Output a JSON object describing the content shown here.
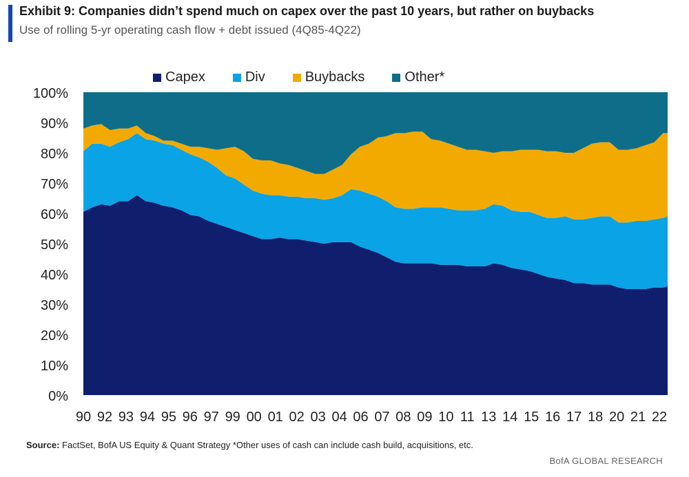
{
  "header": {
    "title": "Exhibit 9: Companies didn’t spend much on capex over the past 10 years, but rather on buybacks",
    "subtitle": "Use of rolling 5-yr operating cash flow + debt issued (4Q85-4Q22)"
  },
  "footer": {
    "source_label": "Source:",
    "source_text": " FactSet, BofA US Equity & Quant Strategy *Other uses of cash can include cash build, acquisitions,  etc.",
    "brand": "BofA GLOBAL RESEARCH"
  },
  "colors": {
    "capex": "#0f1f6e",
    "div": "#0aa3e6",
    "buybacks": "#f2aa00",
    "other": "#0e6e8a",
    "title_bar": "#1546b8"
  },
  "chart_data": {
    "type": "area",
    "stacked": true,
    "title": "Exhibit 9: Companies didn’t spend much on capex over the past 10 years, but rather on buybacks",
    "subtitle": "Use of rolling 5-yr operating cash flow + debt issued (4Q85-4Q22)",
    "xlabel": "",
    "ylabel": "",
    "ylim": [
      0,
      100
    ],
    "y_ticks": [
      "0%",
      "10%",
      "20%",
      "30%",
      "40%",
      "50%",
      "60%",
      "70%",
      "80%",
      "90%",
      "100%"
    ],
    "x_tick_labels": [
      "90",
      "92",
      "93",
      "94",
      "95",
      "96",
      "97",
      "99",
      "00",
      "01",
      "02",
      "03",
      "04",
      "06",
      "07",
      "08",
      "09",
      "10",
      "11",
      "13",
      "14",
      "15",
      "16",
      "17",
      "18",
      "20",
      "21",
      "22"
    ],
    "legend_position": "top",
    "x": [
      1990.0,
      1990.5,
      1991.0,
      1991.5,
      1992.0,
      1992.5,
      1993.0,
      1993.5,
      1994.0,
      1994.5,
      1995.0,
      1995.5,
      1996.0,
      1996.5,
      1997.0,
      1997.5,
      1998.0,
      1998.5,
      1999.0,
      1999.5,
      2000.0,
      2000.5,
      2001.0,
      2001.5,
      2002.0,
      2002.5,
      2003.0,
      2003.5,
      2004.0,
      2004.5,
      2005.0,
      2005.5,
      2006.0,
      2006.5,
      2007.0,
      2007.5,
      2008.0,
      2008.5,
      2009.0,
      2009.5,
      2010.0,
      2010.5,
      2011.0,
      2011.5,
      2012.0,
      2012.5,
      2013.0,
      2013.5,
      2014.0,
      2014.5,
      2015.0,
      2015.5,
      2016.0,
      2016.5,
      2017.0,
      2017.5,
      2018.0,
      2018.5,
      2019.0,
      2019.5,
      2020.0,
      2020.5,
      2021.0,
      2021.5,
      2022.0,
      2022.5,
      2022.75
    ],
    "series": [
      {
        "name": "Capex",
        "key": "capex",
        "values": [
          60.5,
          62,
          63,
          62.5,
          64,
          64,
          66,
          64,
          63.5,
          62.5,
          62,
          61,
          59.5,
          59,
          57.5,
          56.5,
          55.5,
          54.5,
          53.5,
          52.5,
          51.5,
          51.5,
          52,
          51.5,
          51.5,
          51,
          50.5,
          50,
          50.5,
          50.5,
          50.5,
          49,
          48,
          47,
          45.5,
          44,
          43.5,
          43.5,
          43.5,
          43.5,
          43,
          43,
          43,
          42.5,
          42.5,
          42.5,
          43.5,
          43,
          42,
          41.5,
          41,
          40,
          39,
          38.5,
          38,
          37,
          37,
          36.5,
          36.5,
          36.5,
          35.5,
          35,
          35,
          35,
          35.5,
          35.5,
          36
        ]
      },
      {
        "name": "Div",
        "key": "div",
        "values": [
          20,
          21,
          20,
          19.5,
          19.5,
          20.5,
          20.5,
          20.5,
          20.5,
          20.5,
          20.5,
          20,
          20,
          19.5,
          19.5,
          18.5,
          17,
          17,
          16,
          15,
          15,
          14.5,
          14,
          14,
          14,
          14,
          14.5,
          14.5,
          14.5,
          15.5,
          17.5,
          18.5,
          18.5,
          18.5,
          18.5,
          18,
          18,
          18,
          18.5,
          18.5,
          19,
          18.5,
          18,
          18.5,
          18.5,
          19,
          19.5,
          19.5,
          19,
          19,
          19.5,
          19.5,
          19.5,
          20,
          21,
          21,
          21,
          22,
          22.5,
          22.5,
          21.5,
          22,
          22.5,
          22.5,
          22.5,
          23,
          23
        ]
      },
      {
        "name": "Buybacks",
        "key": "buybacks",
        "values": [
          7.5,
          6,
          6.5,
          5.5,
          4.5,
          3.5,
          2.5,
          2,
          1.5,
          1,
          1.5,
          2,
          2.5,
          3.5,
          4.5,
          6,
          9,
          10.5,
          11,
          10.5,
          11,
          11.5,
          10.5,
          10.5,
          9.5,
          9,
          8,
          8.5,
          9.5,
          10,
          11.5,
          14.5,
          16.5,
          19.5,
          21.5,
          24.5,
          25,
          25.5,
          25,
          22.5,
          22,
          21.5,
          21,
          20,
          20,
          19,
          17,
          18,
          19.5,
          20.5,
          20.5,
          21.5,
          22,
          22,
          21,
          22,
          23.5,
          24.5,
          24.5,
          24.5,
          24,
          24,
          24,
          25,
          25.5,
          28,
          27.5
        ]
      },
      {
        "name": "Other*",
        "key": "other",
        "values": [
          12,
          11,
          10.5,
          12.5,
          12,
          12,
          11,
          13.5,
          14.5,
          16,
          16,
          17,
          18,
          18,
          18.5,
          19,
          18.5,
          18,
          19.5,
          22,
          22.5,
          22.5,
          23.5,
          24,
          25,
          26,
          27,
          27,
          25.5,
          24,
          20.5,
          18,
          17,
          15,
          14.5,
          13.5,
          13.5,
          13,
          13,
          15.5,
          16,
          17,
          18,
          19,
          19,
          19.5,
          20,
          19.5,
          19.5,
          19,
          19,
          19,
          19.5,
          19.5,
          20,
          20,
          18.5,
          17,
          16.5,
          16.5,
          19,
          19,
          18.5,
          17.5,
          16.5,
          13.5,
          13.5
        ]
      }
    ]
  }
}
